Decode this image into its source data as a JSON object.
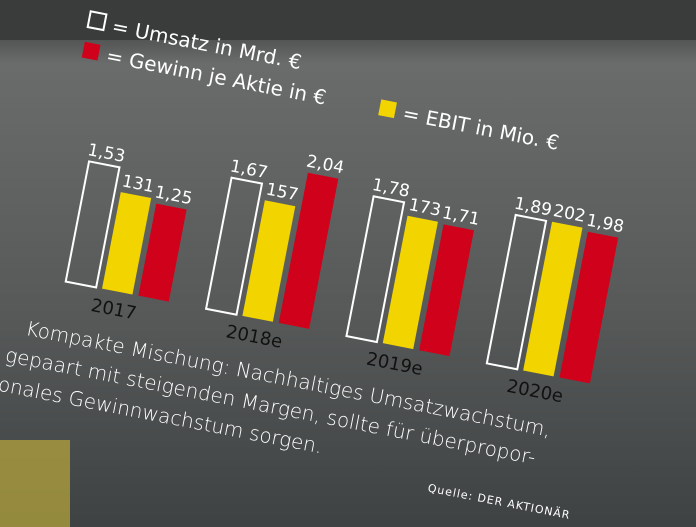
{
  "chart_data": {
    "type": "bar",
    "categories": [
      "2017",
      "2018e",
      "2019e",
      "2020e"
    ],
    "series": [
      {
        "name": "= Umsatz in Mrd. €",
        "values": [
          1.53,
          1.67,
          1.78,
          1.89
        ],
        "labels": [
          "1,53",
          "1,67",
          "1,78",
          "1,89"
        ],
        "color": "#ffffff",
        "style": "outline"
      },
      {
        "name": "= EBIT in Mio. €",
        "values": [
          131,
          157,
          173,
          202
        ],
        "labels": [
          "131",
          "157",
          "173",
          "202"
        ],
        "color": "#f2d500"
      },
      {
        "name": "= Gewinn je Aktie in €",
        "values": [
          1.25,
          2.04,
          1.71,
          1.98
        ],
        "labels": [
          "1,25",
          "2,04",
          "1,71",
          "1,98"
        ],
        "color": "#d0021b"
      }
    ]
  },
  "caption": {
    "lines": [
      "Kompakte Mischung: Nachhaltiges Umsatzwachstum,",
      "gepaart mit steigenden Margen, sollte für überpropor-",
      "tionales Gewinnwachstum sorgen."
    ],
    "source": "Quelle: DER AKTIONÄR"
  }
}
